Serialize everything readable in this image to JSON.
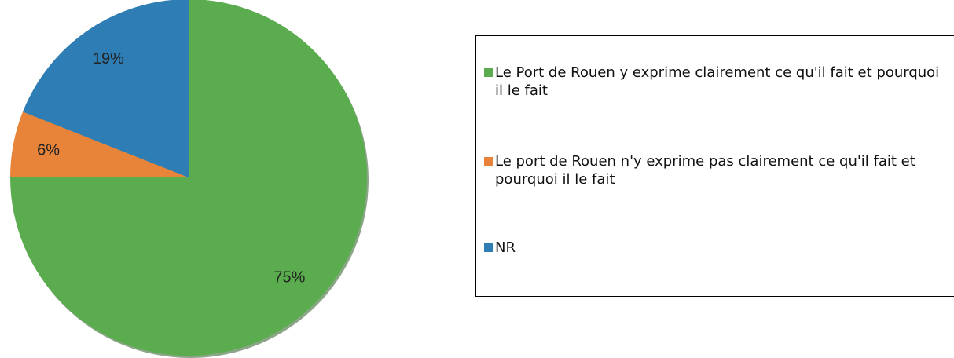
{
  "chart_data": {
    "type": "pie",
    "categories": [
      "Le Port de Rouen y exprime clairement ce qu'il fait et pourquoi il le fait",
      "Le port de Rouen n'y exprime pas clairement ce qu'il fait et pourquoi il le fait",
      "NR"
    ],
    "values": [
      75,
      6,
      19
    ],
    "value_labels": [
      "75%",
      "6%",
      "19%"
    ],
    "colors": [
      "#5aac4f",
      "#e8833a",
      "#2e7db5"
    ],
    "legend": "right"
  }
}
